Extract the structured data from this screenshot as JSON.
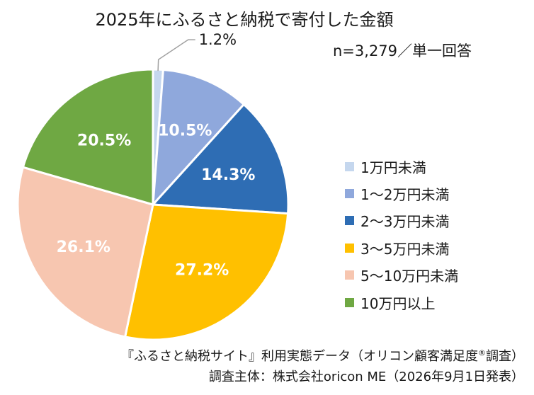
{
  "title": "2025年にふるさと納税で寄付した金額",
  "sample_note": "n=3,279／単一回答",
  "chart_data": {
    "type": "pie",
    "title": "2025年にふるさと納税で寄付した金額",
    "categories": [
      "1万円未満",
      "1～2万円未満",
      "2～3万円未満",
      "3～5万円未満",
      "5～10万円未満",
      "10万円以上"
    ],
    "values": [
      1.2,
      10.5,
      14.3,
      27.2,
      26.1,
      20.5
    ],
    "labels": [
      "1.2%",
      "10.5%",
      "14.3%",
      "27.2%",
      "26.1%",
      "20.5%"
    ],
    "colors": [
      "#c5d7ee",
      "#8fa8dc",
      "#2e6db4",
      "#ffc000",
      "#f7c6b0",
      "#6fa843"
    ],
    "legend_position": "right",
    "start": "12 o'clock, clockwise"
  },
  "footer": {
    "source_line": "『ふるさと納税サイト』利用実態データ（オリコン顧客満足度",
    "registered_mark": "®",
    "source_suffix": "調査）",
    "organizer_line": "調査主体：株式会社oricon ME（2026年9月1日発表）"
  }
}
